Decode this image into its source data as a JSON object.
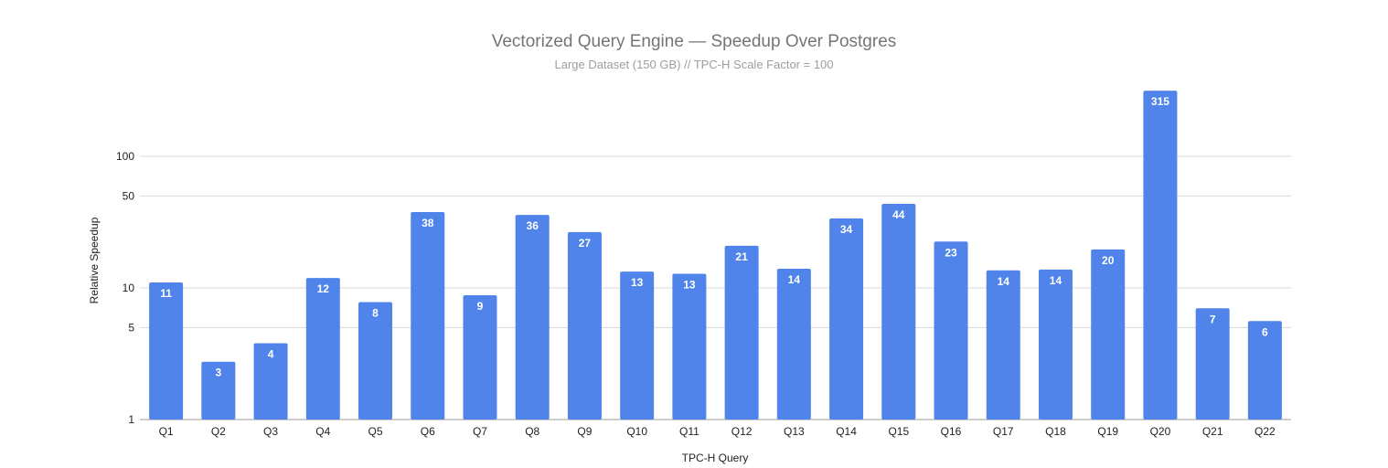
{
  "chart_data": {
    "type": "bar",
    "title": "Vectorized Query Engine — Speedup Over Postgres",
    "subtitle": "Large Dataset (150 GB) // TPC-H Scale Factor = 100",
    "xlabel": "TPC-H Query",
    "ylabel": "Relative Speedup",
    "yscale": "log",
    "ylim": [
      1,
      400
    ],
    "yticks": [
      1,
      5,
      10,
      50,
      100
    ],
    "grid": true,
    "legend": "none",
    "bar_color": "#5084ea",
    "categories": [
      "Q1",
      "Q2",
      "Q3",
      "Q4",
      "Q5",
      "Q6",
      "Q7",
      "Q8",
      "Q9",
      "Q10",
      "Q11",
      "Q12",
      "Q13",
      "Q14",
      "Q15",
      "Q16",
      "Q17",
      "Q18",
      "Q19",
      "Q20",
      "Q21",
      "Q22"
    ],
    "values": [
      11.0,
      2.75,
      3.8,
      11.9,
      7.8,
      37.7,
      8.8,
      35.9,
      26.6,
      13.3,
      12.8,
      20.9,
      14.0,
      33.7,
      43.5,
      22.5,
      13.6,
      13.8,
      19.6,
      315,
      7.0,
      5.6
    ],
    "data_labels": [
      "11",
      "3",
      "4",
      "12",
      "8",
      "38",
      "9",
      "36",
      "27",
      "13",
      "13",
      "21",
      "14",
      "34",
      "44",
      "23",
      "14",
      "14",
      "20",
      "315",
      "7",
      "6"
    ]
  }
}
